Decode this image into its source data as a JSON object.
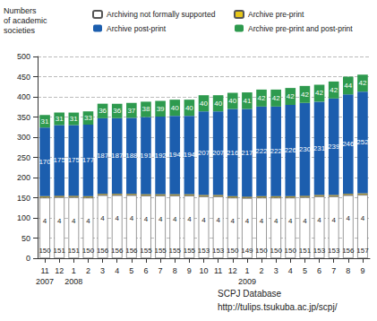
{
  "chart_data": {
    "type": "bar",
    "stacked": true,
    "data_labels": true,
    "grid": true,
    "legend": "top",
    "ylabel": "Numbers\nof academic\nsocieties",
    "annotations": [
      "SCPJ Database",
      "http://tulips.tsukuba.ac.jp/scpj/"
    ],
    "categories": [
      "11\n2007",
      "12",
      "1\n2008",
      "2",
      "3",
      "4",
      "5",
      "6",
      "7",
      "8",
      "9",
      "10",
      "11",
      "12",
      "1\n2009",
      "2",
      "3",
      "4",
      "5",
      "6",
      "7",
      "8",
      "9"
    ],
    "series": [
      {
        "name": "Archiving not formally supported",
        "color": "#ffffff",
        "values": [
          150,
          151,
          151,
          150,
          156,
          156,
          156,
          155,
          155,
          155,
          155,
          153,
          153,
          150,
          149,
          150,
          150,
          150,
          151,
          153,
          153,
          156,
          157
        ]
      },
      {
        "name": "Archive pre-print",
        "color": "#e6c619",
        "values": [
          4,
          4,
          4,
          4,
          4,
          4,
          4,
          4,
          4,
          4,
          4,
          4,
          4,
          4,
          4,
          4,
          4,
          4,
          4,
          4,
          4,
          4,
          4
        ]
      },
      {
        "name": "Archive post-print",
        "color": "#1c5eae",
        "values": [
          170,
          175,
          175,
          177,
          187,
          187,
          188,
          191,
          192,
          194,
          194,
          207,
          207,
          216,
          217,
          222,
          222,
          226,
          230,
          231,
          239,
          246,
          252
        ]
      },
      {
        "name": "Archive pre-print and post-print",
        "color": "#2e9a4e",
        "values": [
          31,
          31,
          31,
          33,
          36,
          36,
          37,
          38,
          39,
          40,
          40,
          40,
          40,
          40,
          41,
          42,
          42,
          42,
          42,
          42,
          42,
          44,
          42
        ]
      }
    ],
    "ylim": [
      0,
      500
    ],
    "yticks": [
      0,
      50,
      100,
      150,
      200,
      250,
      300,
      350,
      400,
      450,
      500
    ]
  }
}
